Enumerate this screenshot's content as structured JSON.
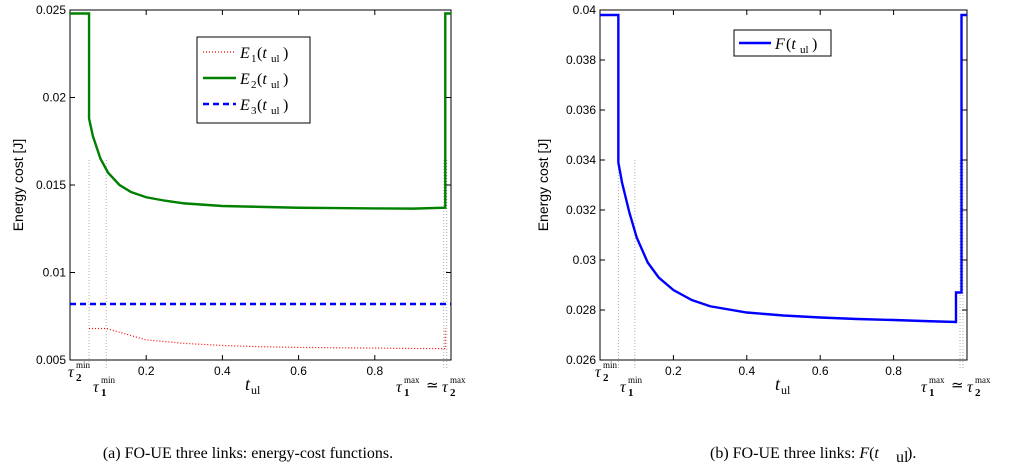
{
  "chart_data": [
    {
      "type": "line",
      "caption": "(a) FO-UE three links: energy-cost functions.",
      "ylabel": "Energy cost [J]",
      "xlabel": "t_ul",
      "xlim": [
        0.0,
        1.0
      ],
      "ylim": [
        0.005,
        0.025
      ],
      "xticks": [
        0.2,
        0.4,
        0.6,
        0.8
      ],
      "yticks": [
        0.005,
        0.01,
        0.015,
        0.02,
        0.025
      ],
      "ytick_labels": [
        "0.005",
        "0.01",
        "0.015",
        "0.02",
        "0.025"
      ],
      "xtick_labels": [
        "0.2",
        "0.4",
        "0.6",
        "0.8"
      ],
      "legend_position": "top-center",
      "markers": {
        "tau2_min": 0.05,
        "tau1_min": 0.095,
        "tau_max": 0.985
      },
      "series": [
        {
          "name": "E1(t_ul)",
          "color": "#ff0000",
          "style": "dotted",
          "x": [
            0.05,
            0.095,
            0.2,
            0.3,
            0.4,
            0.5,
            0.6,
            0.7,
            0.8,
            0.9,
            0.985,
            0.985
          ],
          "y": [
            0.0068,
            0.0068,
            0.00615,
            0.00595,
            0.00583,
            0.00576,
            0.00572,
            0.0057,
            0.00568,
            0.00566,
            0.00565,
            0.0068
          ]
        },
        {
          "name": "E2(t_ul)",
          "color": "#008000",
          "style": "solid",
          "x": [
            0.05,
            0.05,
            0.06,
            0.08,
            0.1,
            0.13,
            0.16,
            0.2,
            0.25,
            0.3,
            0.4,
            0.5,
            0.6,
            0.7,
            0.8,
            0.9,
            0.985,
            0.985,
            1.0
          ],
          "y": [
            0.0248,
            0.0188,
            0.0178,
            0.0165,
            0.0157,
            0.015,
            0.0146,
            0.0143,
            0.0141,
            0.01395,
            0.0138,
            0.01375,
            0.0137,
            0.01368,
            0.01366,
            0.01365,
            0.0137,
            0.0248,
            0.0248
          ],
          "x_start": [
            0.0,
            0.05
          ],
          "y_start": [
            0.0248,
            0.0248
          ]
        },
        {
          "name": "E3(t_ul)",
          "color": "#0000ff",
          "style": "dashed",
          "x": [
            0.0,
            1.0
          ],
          "y": [
            0.0082,
            0.0082
          ]
        }
      ],
      "x_marker_labels": {
        "tau2_min": "τ₂^min",
        "tau1_min": "τ₁^min",
        "tau_max": "τ₁^max ≃ τ₂^max"
      }
    },
    {
      "type": "line",
      "caption": "(b) FO-UE three links: F(t_ul).",
      "ylabel": "Energy cost [J]",
      "xlabel": "t_ul",
      "xlim": [
        0.0,
        1.0
      ],
      "ylim": [
        0.026,
        0.04
      ],
      "xticks": [
        0.2,
        0.4,
        0.6,
        0.8
      ],
      "xtick_labels": [
        "0.2",
        "0.4",
        "0.6",
        "0.8"
      ],
      "yticks": [
        0.026,
        0.028,
        0.03,
        0.032,
        0.034,
        0.036,
        0.038,
        0.04
      ],
      "ytick_labels": [
        "0.026",
        "0.028",
        "0.03",
        "0.032",
        "0.034",
        "0.036",
        "0.038",
        "0.04"
      ],
      "legend_position": "top-center",
      "markers": {
        "tau2_min": 0.05,
        "tau1_min": 0.095,
        "tau_max": 0.985
      },
      "series": [
        {
          "name": "F(t_ul)",
          "color": "#0000ff",
          "style": "solid",
          "x": [
            0.0,
            0.05,
            0.05,
            0.06,
            0.08,
            0.1,
            0.13,
            0.16,
            0.2,
            0.25,
            0.3,
            0.4,
            0.5,
            0.6,
            0.7,
            0.8,
            0.9,
            0.97,
            0.97,
            0.985,
            0.985,
            1.0
          ],
          "y": [
            0.0398,
            0.0398,
            0.0339,
            0.0331,
            0.0319,
            0.0309,
            0.0299,
            0.0293,
            0.0288,
            0.0284,
            0.02815,
            0.0279,
            0.02778,
            0.0277,
            0.02764,
            0.0276,
            0.02755,
            0.02752,
            0.0287,
            0.0287,
            0.0398,
            0.0398
          ]
        }
      ]
    }
  ]
}
